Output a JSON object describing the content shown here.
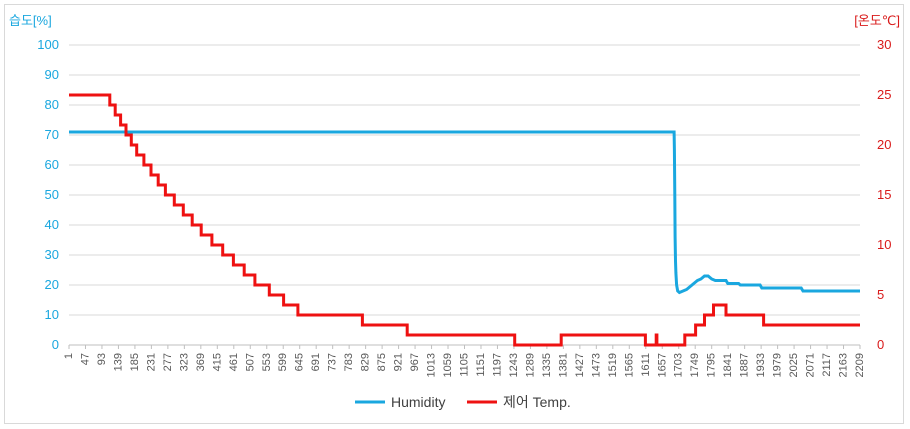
{
  "chart_data": {
    "type": "line",
    "y_left_label": "습도[%]",
    "y_right_label": "[온도℃]",
    "y_left_ticks": [
      "0",
      "10",
      "20",
      "30",
      "40",
      "50",
      "60",
      "70",
      "80",
      "90",
      "100"
    ],
    "y_right_ticks": [
      "0",
      "5",
      "10",
      "15",
      "20",
      "25",
      "30"
    ],
    "ylim_left": [
      0,
      100
    ],
    "ylim_right": [
      0,
      30
    ],
    "xlim": [
      1,
      2209
    ],
    "x_ticks": [
      "1",
      "47",
      "93",
      "139",
      "185",
      "231",
      "277",
      "323",
      "369",
      "415",
      "461",
      "507",
      "553",
      "599",
      "645",
      "691",
      "737",
      "783",
      "829",
      "875",
      "921",
      "967",
      "1013",
      "1059",
      "1105",
      "1151",
      "1197",
      "1243",
      "1289",
      "1335",
      "1381",
      "1427",
      "1473",
      "1519",
      "1565",
      "1611",
      "1657",
      "1703",
      "1749",
      "1795",
      "1841",
      "1887",
      "1933",
      "1979",
      "2025",
      "2071",
      "2117",
      "2163",
      "2209"
    ],
    "grid": "horizontal",
    "legend_position": "bottom",
    "colors": {
      "humidity": "#1aa7df",
      "temp": "#ee1111",
      "left_axis_text": "#1aa7df",
      "right_axis_text": "#d91a1a"
    },
    "series": [
      {
        "name": "Humidity",
        "axis": "left",
        "x": [
          1,
          1690,
          1691,
          1692,
          1693,
          1694,
          1695,
          1697,
          1700,
          1705,
          1715,
          1725,
          1735,
          1745,
          1755,
          1765,
          1775,
          1785,
          1795,
          1805,
          1815,
          1835,
          1840,
          1870,
          1875,
          1930,
          1935,
          1975,
          1980,
          2045,
          2050,
          2209
        ],
        "y": [
          71,
          71,
          65,
          50,
          36,
          28,
          24,
          20,
          18,
          17.5,
          18,
          18.5,
          19.5,
          20.5,
          21.5,
          22,
          23,
          23,
          22,
          21.5,
          21.5,
          21.5,
          20.5,
          20.5,
          20,
          20,
          19,
          19,
          19,
          19,
          18,
          18
        ]
      },
      {
        "name": "제어 Temp.",
        "axis": "right",
        "x": [
          1,
          115,
          130,
          145,
          160,
          175,
          190,
          210,
          230,
          250,
          270,
          295,
          320,
          345,
          370,
          400,
          430,
          460,
          490,
          520,
          560,
          600,
          640,
          680,
          730,
          770,
          820,
          880,
          945,
          1000,
          1245,
          1250,
          1375,
          1380,
          1610,
          1615,
          1640,
          1642,
          1690,
          1720,
          1750,
          1775,
          1800,
          1830,
          1835,
          1935,
          1940,
          2155,
          2160,
          2209
        ],
        "y": [
          25,
          24,
          23,
          22,
          21,
          20,
          19,
          18,
          17,
          16,
          15,
          14,
          13,
          12,
          11,
          10,
          9,
          8,
          7,
          6,
          5,
          4,
          3,
          3,
          3,
          3,
          2,
          2,
          1,
          1,
          0,
          0,
          1,
          1,
          0,
          0,
          1,
          0,
          0,
          1,
          2,
          3,
          4,
          4,
          3,
          3,
          2,
          2,
          2,
          2
        ],
        "note_drop_x_markers": []
      }
    ],
    "legend": [
      {
        "label": "Humidity",
        "color": "#1aa7df"
      },
      {
        "label": "제어 Temp.",
        "color": "#ee1111"
      }
    ]
  }
}
